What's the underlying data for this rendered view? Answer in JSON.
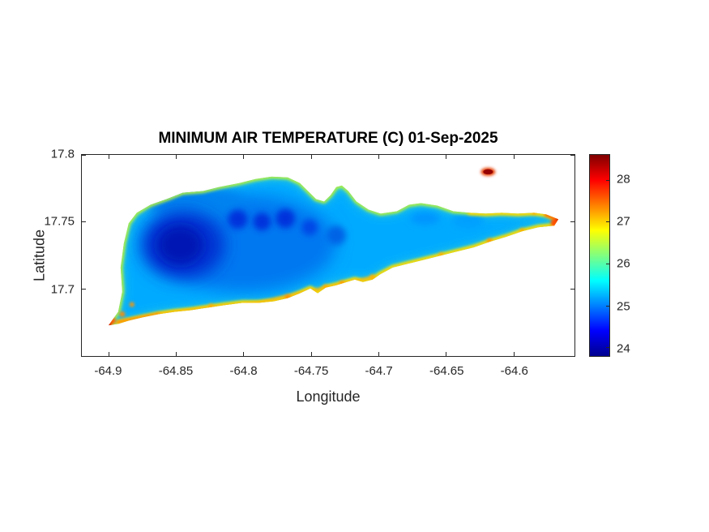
{
  "figure": {
    "background": "#ffffff"
  },
  "axis_style": {
    "tick_color": "#262626",
    "box_color": "#262626"
  },
  "chart_data": {
    "type": "heatmap",
    "title": "MINIMUM AIR TEMPERATURE (C) 01-Sep-2025",
    "xlabel": "Longitude",
    "ylabel": "Latitude",
    "xlim": [
      -64.92,
      -64.555
    ],
    "ylim": [
      17.65,
      17.8
    ],
    "xticks": [
      -64.9,
      -64.85,
      -64.8,
      -64.75,
      -64.7,
      -64.65,
      -64.6
    ],
    "xtick_labels": [
      "-64.9",
      "-64.85",
      "-64.8",
      "-64.75",
      "-64.7",
      "-64.65",
      "-64.6"
    ],
    "yticks": [
      17.8,
      17.75,
      17.7
    ],
    "ytick_labels": [
      "17.8",
      "17.75",
      "17.7"
    ],
    "grid": false,
    "legend": false,
    "colorbar": {
      "position": "right",
      "min": 23.8,
      "max": 28.6,
      "ticks": [
        24,
        25,
        26,
        27,
        28
      ],
      "tick_labels": [
        "24",
        "25",
        "26",
        "27",
        "28"
      ],
      "colormap": "jet",
      "gradient_stops": [
        {
          "pos": 0,
          "color": "#00008f"
        },
        {
          "pos": 12.5,
          "color": "#0000ff"
        },
        {
          "pos": 37.5,
          "color": "#00ffff"
        },
        {
          "pos": 62.5,
          "color": "#ffff00"
        },
        {
          "pos": 87.5,
          "color": "#ff0000"
        },
        {
          "pos": 100,
          "color": "#800000"
        }
      ]
    },
    "field": {
      "description": "Interpolated minimum air temperature field over an island spanning approx. lon -64.91 to -64.56 and lat 17.68 to 17.79",
      "interior_values_c": "24 to 25.5 (dark blue to blue), coolest patch in the west-central interior near lon -64.86, lat 17.73",
      "north_coast_values_c": "25.5 to 26.5 (cyan to green) thin rim",
      "south_coast_values_c": "26.5 to 28 (yellow to orange) rim along the entire south shore and eastern tail edges",
      "hot_extremes_c": "28 to 28.5 (red) at the southwest point near lon -64.9, lat 17.68 and at the east tip near lon -64.56, lat 17.755",
      "offshore_spot": "small dark-red patch (~28.5) just north of the eastern tail near lon -64.62, lat 17.79"
    }
  }
}
